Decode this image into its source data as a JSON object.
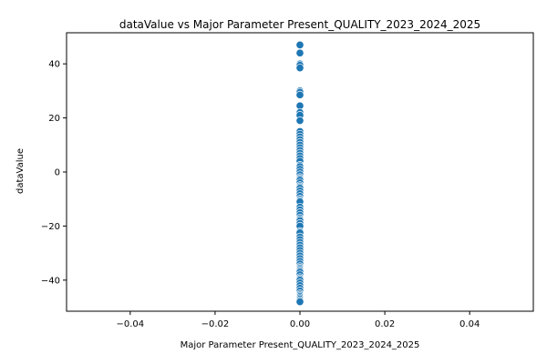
{
  "chart_data": {
    "type": "scatter",
    "title": "dataValue vs Major Parameter Present_QUALITY_2023_2024_2025",
    "xlabel": "Major Parameter Present_QUALITY_2023_2024_2025",
    "ylabel": "dataValue",
    "xlim": [
      -0.055,
      0.055
    ],
    "ylim": [
      -51.5,
      51.5
    ],
    "x_ticks": [
      -0.04,
      -0.02,
      0.0,
      0.02,
      0.04
    ],
    "x_tick_labels": [
      "−0.04",
      "−0.02",
      "0.00",
      "0.02",
      "0.04"
    ],
    "y_ticks": [
      -40,
      -20,
      0,
      20,
      40
    ],
    "y_tick_labels": [
      "−40",
      "−20",
      "0",
      "20",
      "40"
    ],
    "grid": false,
    "marker_color": "#1f77b4",
    "series": [
      {
        "x": [
          0,
          0,
          0,
          0,
          0,
          0,
          0,
          0,
          0,
          0,
          0,
          0,
          0,
          0,
          0,
          0,
          0,
          0,
          0,
          0,
          0,
          0,
          0,
          0,
          0,
          0,
          0,
          0,
          0,
          0,
          0,
          0,
          0,
          0,
          0,
          0,
          0,
          0,
          0,
          0,
          0,
          0,
          0,
          0,
          0,
          0,
          0,
          0,
          0,
          0,
          0,
          0,
          0,
          0,
          0,
          0,
          0,
          0,
          0,
          0,
          0,
          0,
          0,
          0,
          0,
          0,
          0,
          0,
          0,
          0,
          0,
          0,
          0,
          0,
          0,
          0,
          0,
          0,
          0,
          0,
          0,
          0,
          0,
          0
        ],
        "y": [
          47,
          44,
          40,
          39.5,
          38.5,
          30,
          29.5,
          28.5,
          24.5,
          22,
          21,
          19,
          15,
          14,
          13,
          12,
          11,
          10,
          9,
          8,
          7,
          6,
          5,
          4,
          2.5,
          2,
          1,
          0,
          -1,
          -2,
          -2.5,
          -3,
          -4,
          -5,
          -5.5,
          -6,
          -7,
          -8,
          -9,
          -10,
          -10.5,
          -11,
          -13,
          -14,
          -15,
          -16,
          -17,
          -17.5,
          -18,
          -19,
          -20,
          -22,
          -22.5,
          -24,
          -25,
          -26,
          -27,
          -28,
          -29,
          -30,
          -31,
          -32,
          -33,
          -34,
          -35,
          -35.5,
          -36,
          -36.5,
          -37,
          -38,
          -39,
          -39.5,
          -40,
          -41,
          -42,
          -43,
          -44,
          -45,
          -45.5,
          -46,
          -46.5,
          -47,
          -47.5,
          -48
        ]
      }
    ]
  }
}
